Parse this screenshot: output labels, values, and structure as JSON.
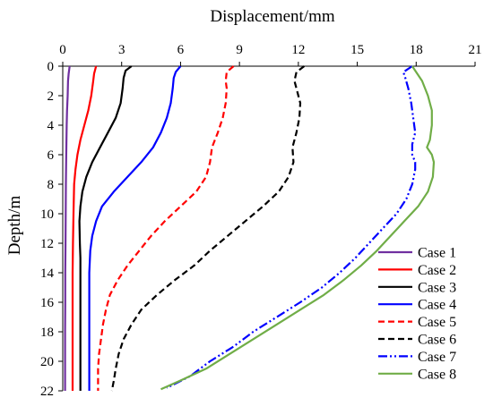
{
  "chart_data": {
    "type": "line",
    "title": "",
    "xlabel": "Displacement/mm",
    "ylabel": "Depth/m",
    "x_axis_position": "top",
    "y_axis_inverted": true,
    "xlim": [
      0,
      21
    ],
    "ylim": [
      0,
      22
    ],
    "xticks": [
      0,
      3,
      6,
      9,
      12,
      15,
      18,
      21
    ],
    "yticks": [
      0,
      2,
      4,
      6,
      8,
      10,
      12,
      14,
      16,
      18,
      20,
      22
    ],
    "grid": false,
    "legend_position": "bottom-right",
    "series": [
      {
        "name": "Case 1",
        "color": "#7030A0",
        "style": "solid",
        "points": [
          [
            0.35,
            0
          ],
          [
            0.3,
            0.5
          ],
          [
            0.27,
            1.0
          ],
          [
            0.25,
            2
          ],
          [
            0.22,
            3
          ],
          [
            0.2,
            4
          ],
          [
            0.18,
            6
          ],
          [
            0.16,
            8
          ],
          [
            0.15,
            10
          ],
          [
            0.14,
            12
          ],
          [
            0.13,
            14
          ],
          [
            0.13,
            16
          ],
          [
            0.12,
            18
          ],
          [
            0.12,
            20
          ],
          [
            0.12,
            22
          ]
        ]
      },
      {
        "name": "Case 2",
        "color": "#FF0000",
        "style": "solid",
        "points": [
          [
            1.7,
            0
          ],
          [
            1.6,
            0.5
          ],
          [
            1.55,
            1.0
          ],
          [
            1.45,
            2
          ],
          [
            1.3,
            3
          ],
          [
            1.1,
            4
          ],
          [
            0.9,
            5
          ],
          [
            0.75,
            6
          ],
          [
            0.65,
            7
          ],
          [
            0.58,
            8
          ],
          [
            0.55,
            10
          ],
          [
            0.52,
            12
          ],
          [
            0.5,
            14
          ],
          [
            0.5,
            16
          ],
          [
            0.5,
            18
          ],
          [
            0.5,
            20
          ],
          [
            0.5,
            22
          ]
        ]
      },
      {
        "name": "Case 3",
        "color": "#000000",
        "style": "solid",
        "points": [
          [
            3.5,
            0
          ],
          [
            3.2,
            0.3
          ],
          [
            3.1,
            0.8
          ],
          [
            3.05,
            1.5
          ],
          [
            2.95,
            2.5
          ],
          [
            2.7,
            3.5
          ],
          [
            2.3,
            4.5
          ],
          [
            1.9,
            5.5
          ],
          [
            1.5,
            6.5
          ],
          [
            1.2,
            7.5
          ],
          [
            1.0,
            8.5
          ],
          [
            0.9,
            9.5
          ],
          [
            0.85,
            10.5
          ],
          [
            0.87,
            12
          ],
          [
            0.9,
            13
          ],
          [
            0.9,
            14
          ],
          [
            0.9,
            16
          ],
          [
            0.9,
            18
          ],
          [
            0.9,
            20
          ],
          [
            0.9,
            22
          ]
        ]
      },
      {
        "name": "Case 4",
        "color": "#0000FF",
        "style": "solid",
        "points": [
          [
            6.0,
            0
          ],
          [
            5.75,
            0.4
          ],
          [
            5.65,
            0.8
          ],
          [
            5.6,
            1.5
          ],
          [
            5.5,
            2.5
          ],
          [
            5.3,
            3.5
          ],
          [
            5.0,
            4.5
          ],
          [
            4.6,
            5.5
          ],
          [
            4.0,
            6.5
          ],
          [
            3.3,
            7.5
          ],
          [
            2.6,
            8.5
          ],
          [
            2.0,
            9.5
          ],
          [
            1.7,
            10.5
          ],
          [
            1.5,
            11.5
          ],
          [
            1.4,
            12.5
          ],
          [
            1.35,
            14
          ],
          [
            1.35,
            16
          ],
          [
            1.35,
            18
          ],
          [
            1.35,
            20
          ],
          [
            1.35,
            22
          ]
        ]
      },
      {
        "name": "Case 5",
        "color": "#FF0000",
        "style": "dashed",
        "points": [
          [
            8.7,
            0
          ],
          [
            8.35,
            0.4
          ],
          [
            8.3,
            1.0
          ],
          [
            8.35,
            1.5
          ],
          [
            8.3,
            2.5
          ],
          [
            8.15,
            3.5
          ],
          [
            7.9,
            4.5
          ],
          [
            7.6,
            5.5
          ],
          [
            7.5,
            6.5
          ],
          [
            7.3,
            7.5
          ],
          [
            6.8,
            8.5
          ],
          [
            6.0,
            9.5
          ],
          [
            5.2,
            10.5
          ],
          [
            4.5,
            11.5
          ],
          [
            3.9,
            12.5
          ],
          [
            3.3,
            13.5
          ],
          [
            2.8,
            14.5
          ],
          [
            2.4,
            15.5
          ],
          [
            2.2,
            16.5
          ],
          [
            2.05,
            17.5
          ],
          [
            1.95,
            18.5
          ],
          [
            1.85,
            19.5
          ],
          [
            1.8,
            20.5
          ],
          [
            1.8,
            22
          ]
        ]
      },
      {
        "name": "Case 6",
        "color": "#000000",
        "style": "dashed",
        "points": [
          [
            12.3,
            0
          ],
          [
            11.9,
            0.4
          ],
          [
            11.8,
            1.0
          ],
          [
            11.9,
            1.5
          ],
          [
            12.1,
            2.5
          ],
          [
            12.05,
            3.5
          ],
          [
            11.9,
            4.5
          ],
          [
            11.7,
            5.5
          ],
          [
            11.75,
            6.5
          ],
          [
            11.5,
            7.5
          ],
          [
            11.0,
            8.5
          ],
          [
            10.2,
            9.5
          ],
          [
            9.3,
            10.5
          ],
          [
            8.4,
            11.5
          ],
          [
            7.5,
            12.5
          ],
          [
            6.7,
            13.5
          ],
          [
            5.7,
            14.5
          ],
          [
            4.8,
            15.5
          ],
          [
            4.0,
            16.5
          ],
          [
            3.5,
            17.5
          ],
          [
            3.1,
            18.5
          ],
          [
            2.85,
            19.5
          ],
          [
            2.7,
            20.5
          ],
          [
            2.6,
            21.3
          ],
          [
            2.5,
            22
          ]
        ]
      },
      {
        "name": "Case 7",
        "color": "#0000FF",
        "style": "dashdotdot",
        "points": [
          [
            17.8,
            0
          ],
          [
            17.35,
            0.4
          ],
          [
            17.45,
            0.8
          ],
          [
            17.6,
            1.5
          ],
          [
            17.75,
            2.5
          ],
          [
            17.85,
            3.5
          ],
          [
            17.95,
            4.5
          ],
          [
            17.8,
            5.3
          ],
          [
            17.8,
            6.0
          ],
          [
            17.95,
            6.5
          ],
          [
            17.95,
            7.0
          ],
          [
            17.8,
            8.0
          ],
          [
            17.5,
            9.0
          ],
          [
            17.0,
            10.0
          ],
          [
            16.3,
            11.0
          ],
          [
            15.6,
            12.0
          ],
          [
            14.9,
            13.0
          ],
          [
            14.1,
            14.0
          ],
          [
            13.2,
            15.0
          ],
          [
            12.1,
            16.0
          ],
          [
            10.9,
            17.0
          ],
          [
            9.7,
            18.0
          ],
          [
            8.7,
            19.0
          ],
          [
            7.5,
            20.0
          ],
          [
            6.5,
            21.0
          ],
          [
            5.3,
            21.8
          ]
        ]
      },
      {
        "name": "Case 8",
        "color": "#70AD47",
        "style": "solid",
        "points": [
          [
            17.8,
            0
          ],
          [
            18.0,
            0.4
          ],
          [
            18.3,
            1.0
          ],
          [
            18.6,
            2.0
          ],
          [
            18.8,
            3.0
          ],
          [
            18.8,
            4.0
          ],
          [
            18.7,
            5.0
          ],
          [
            18.55,
            5.5
          ],
          [
            18.8,
            6.0
          ],
          [
            18.9,
            6.5
          ],
          [
            18.85,
            7.5
          ],
          [
            18.6,
            8.5
          ],
          [
            18.1,
            9.5
          ],
          [
            17.4,
            10.5
          ],
          [
            16.7,
            11.5
          ],
          [
            16.0,
            12.5
          ],
          [
            15.2,
            13.5
          ],
          [
            14.3,
            14.5
          ],
          [
            13.3,
            15.5
          ],
          [
            12.1,
            16.5
          ],
          [
            10.9,
            17.5
          ],
          [
            9.7,
            18.5
          ],
          [
            8.5,
            19.5
          ],
          [
            7.3,
            20.5
          ],
          [
            6.0,
            21.3
          ],
          [
            5.0,
            21.9
          ]
        ]
      }
    ]
  }
}
